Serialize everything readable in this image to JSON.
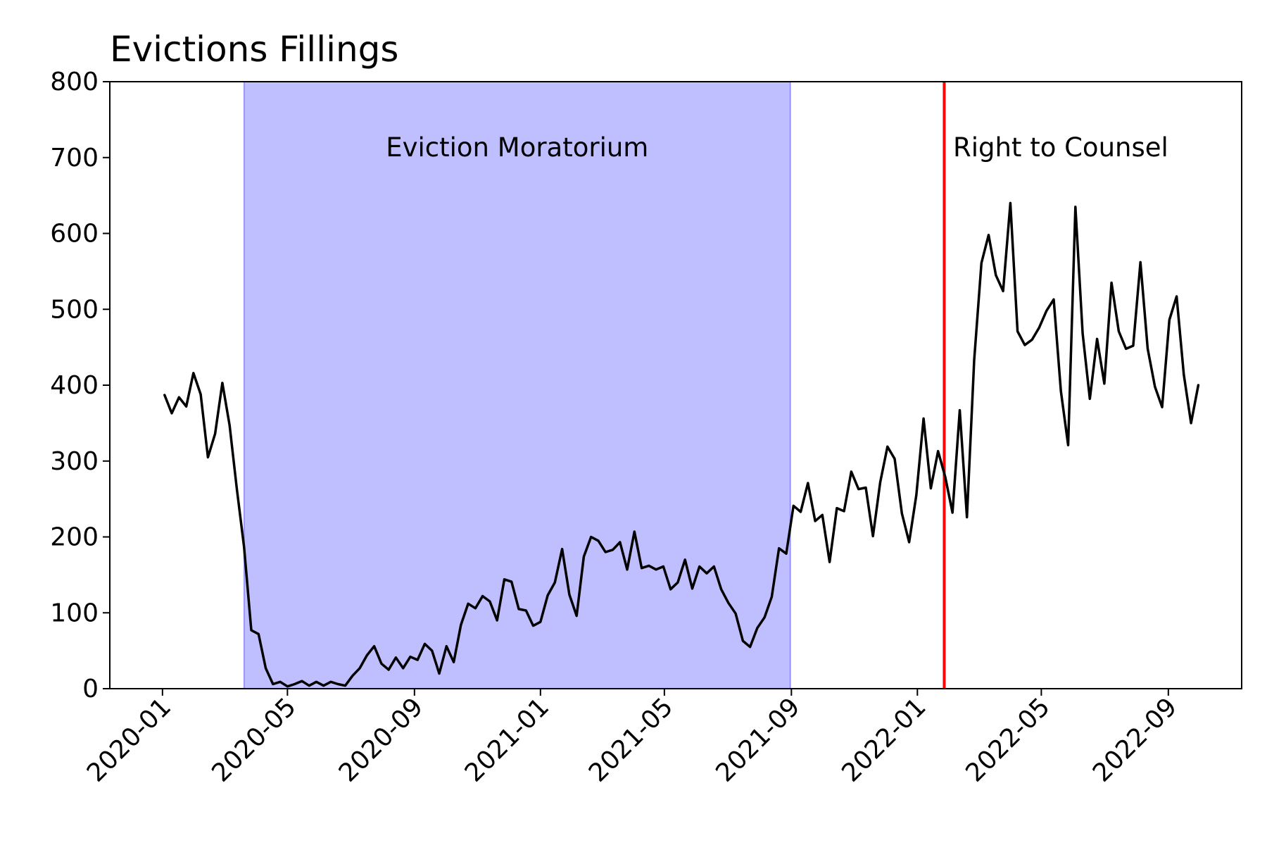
{
  "chart_data": {
    "type": "line",
    "title": "Evictions Fillings",
    "xlabel": "",
    "ylabel": "",
    "ylim": [
      0,
      800
    ],
    "xlim": [
      "2019-11-11",
      "2022-11-11"
    ],
    "yticks": [
      0,
      100,
      200,
      300,
      400,
      500,
      600,
      700,
      800
    ],
    "xticks": [
      "2020-01",
      "2020-05",
      "2020-09",
      "2021-01",
      "2021-05",
      "2021-09",
      "2022-01",
      "2022-05",
      "2022-09"
    ],
    "grid": false,
    "shaded_region": {
      "label": "Eviction Moratorium",
      "start": "2020-03-20",
      "end": "2021-08-31",
      "color": "#0000ff",
      "opacity": 0.25
    },
    "vertical_line": {
      "label": "Right to Counsel",
      "x": "2022-01-27",
      "color": "#ff0000"
    },
    "series": [
      {
        "color": "#000000",
        "x": [
          "2020-01-03",
          "2020-01-10",
          "2020-01-17",
          "2020-01-24",
          "2020-01-31",
          "2020-02-07",
          "2020-02-14",
          "2020-02-21",
          "2020-02-28",
          "2020-03-06",
          "2020-03-13",
          "2020-03-20",
          "2020-03-27",
          "2020-04-03",
          "2020-04-10",
          "2020-04-17",
          "2020-04-24",
          "2020-05-01",
          "2020-05-08",
          "2020-05-15",
          "2020-05-22",
          "2020-05-29",
          "2020-06-05",
          "2020-06-12",
          "2020-06-19",
          "2020-06-26",
          "2020-07-03",
          "2020-07-10",
          "2020-07-17",
          "2020-07-24",
          "2020-07-31",
          "2020-08-07",
          "2020-08-14",
          "2020-08-21",
          "2020-08-28",
          "2020-09-04",
          "2020-09-11",
          "2020-09-18",
          "2020-09-25",
          "2020-10-02",
          "2020-10-09",
          "2020-10-16",
          "2020-10-23",
          "2020-10-30",
          "2020-11-06",
          "2020-11-13",
          "2020-11-20",
          "2020-11-27",
          "2020-12-04",
          "2020-12-11",
          "2020-12-18",
          "2020-12-25",
          "2021-01-01",
          "2021-01-08",
          "2021-01-15",
          "2021-01-22",
          "2021-01-29",
          "2021-02-05",
          "2021-02-12",
          "2021-02-19",
          "2021-02-26",
          "2021-03-05",
          "2021-03-12",
          "2021-03-19",
          "2021-03-26",
          "2021-04-02",
          "2021-04-09",
          "2021-04-16",
          "2021-04-23",
          "2021-04-30",
          "2021-05-07",
          "2021-05-14",
          "2021-05-21",
          "2021-05-28",
          "2021-06-04",
          "2021-06-11",
          "2021-06-18",
          "2021-06-25",
          "2021-07-02",
          "2021-07-09",
          "2021-07-16",
          "2021-07-23",
          "2021-07-30",
          "2021-08-06",
          "2021-08-13",
          "2021-08-20",
          "2021-08-27",
          "2021-09-03",
          "2021-09-10",
          "2021-09-17",
          "2021-09-24",
          "2021-10-01",
          "2021-10-08",
          "2021-10-15",
          "2021-10-22",
          "2021-10-29",
          "2021-11-05",
          "2021-11-12",
          "2021-11-19",
          "2021-11-26",
          "2021-12-03",
          "2021-12-10",
          "2021-12-17",
          "2021-12-24",
          "2021-12-31",
          "2022-01-07",
          "2022-01-14",
          "2022-01-21",
          "2022-01-28",
          "2022-02-04",
          "2022-02-11",
          "2022-02-18",
          "2022-02-25",
          "2022-03-04",
          "2022-03-11",
          "2022-03-18",
          "2022-03-25",
          "2022-04-01",
          "2022-04-08",
          "2022-04-15",
          "2022-04-22",
          "2022-04-29",
          "2022-05-06",
          "2022-05-13",
          "2022-05-20",
          "2022-05-27",
          "2022-06-03",
          "2022-06-10",
          "2022-06-17",
          "2022-06-24",
          "2022-07-01",
          "2022-07-08",
          "2022-07-15",
          "2022-07-22",
          "2022-07-29",
          "2022-08-05",
          "2022-08-12",
          "2022-08-19",
          "2022-08-26",
          "2022-09-02",
          "2022-09-09",
          "2022-09-16",
          "2022-09-23",
          "2022-09-30"
        ],
        "values": [
          387,
          363,
          384,
          372,
          416,
          388,
          305,
          336,
          403,
          347,
          263,
          187,
          77,
          72,
          27,
          6,
          9,
          3,
          6,
          10,
          4,
          9,
          4,
          9,
          6,
          4,
          17,
          27,
          44,
          56,
          33,
          25,
          41,
          27,
          42,
          38,
          59,
          50,
          20,
          56,
          35,
          84,
          112,
          106,
          122,
          115,
          90,
          144,
          141,
          105,
          103,
          83,
          88,
          123,
          140,
          184,
          124,
          96,
          174,
          200,
          195,
          180,
          183,
          193,
          157,
          207,
          159,
          162,
          157,
          161,
          131,
          140,
          170,
          132,
          161,
          152,
          161,
          131,
          113,
          99,
          63,
          55,
          80,
          94,
          121,
          185,
          178,
          241,
          233,
          271,
          221,
          229,
          167,
          238,
          234,
          286,
          263,
          265,
          201,
          272,
          319,
          303,
          231,
          193,
          255,
          356,
          264,
          313,
          279,
          232,
          367,
          226,
          433,
          561,
          598,
          545,
          524,
          640,
          471,
          453,
          460,
          476,
          498,
          513,
          392,
          321,
          635,
          468,
          382,
          461,
          402,
          535,
          471,
          448,
          452,
          562,
          448,
          398,
          371,
          486,
          517,
          414,
          350,
          400
        ]
      }
    ]
  }
}
